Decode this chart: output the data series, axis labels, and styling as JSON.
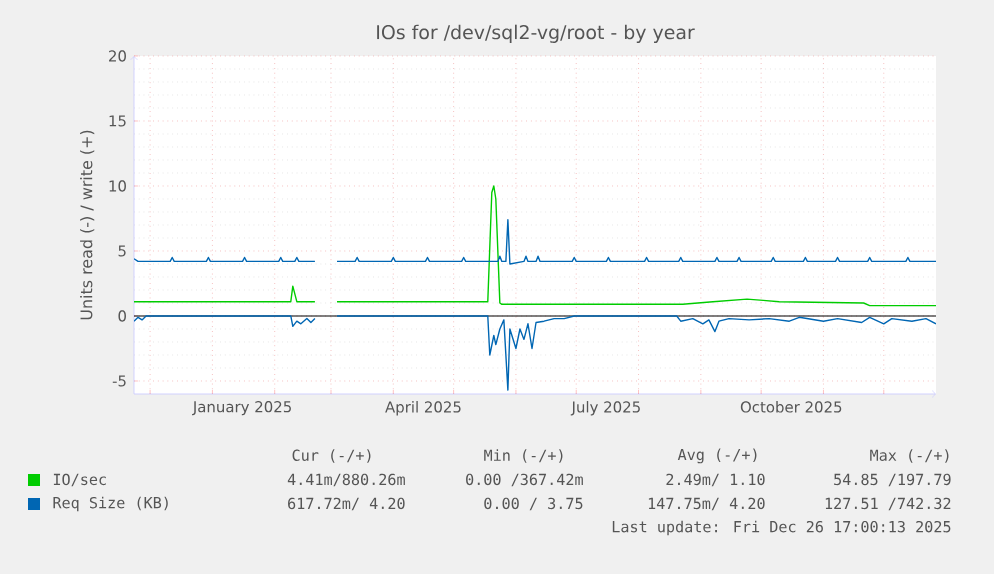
{
  "chart_data": {
    "type": "line",
    "title": "IOs for /dev/sql2-vg/root - by year",
    "ylabel": "Units read (-) / write (+)",
    "xlim": [
      "2024-11-23",
      "2025-12-27"
    ],
    "ylim": [
      -6,
      20
    ],
    "yticks": [
      -5,
      0,
      5,
      10,
      15,
      20
    ],
    "xticks": [
      {
        "value": "2024-12-01",
        "label": null
      },
      {
        "value": "2025-01-01",
        "label": null
      },
      {
        "value": "2025-02-01",
        "label": null
      },
      {
        "value": "2025-03-01",
        "label": null
      },
      {
        "value": "2025-04-01",
        "label": null
      },
      {
        "value": "2025-05-01",
        "label": null
      },
      {
        "value": "2025-06-01",
        "label": null
      },
      {
        "value": "2025-07-01",
        "label": null
      },
      {
        "value": "2025-08-01",
        "label": null
      },
      {
        "value": "2025-09-01",
        "label": null
      },
      {
        "value": "2025-10-01",
        "label": null
      },
      {
        "value": "2025-11-01",
        "label": null
      },
      {
        "value": "2025-12-01",
        "label": null
      },
      {
        "value": "2025-01-16",
        "label": "January 2025"
      },
      {
        "value": "2025-04-16",
        "label": "April 2025"
      },
      {
        "value": "2025-07-16",
        "label": "July 2025"
      },
      {
        "value": "2025-10-16",
        "label": "October 2025"
      }
    ],
    "grid": true,
    "legend": "bottom",
    "ref_lines": [
      {
        "axis": "y",
        "value": 0,
        "color": "#000000"
      }
    ],
    "series": [
      {
        "name": "IO/sec",
        "color": "#00cc00",
        "x": [
          "2024-11-23",
          "2025-02-09",
          "2025-02-10",
          "2025-02-12",
          "2025-02-21",
          "2025-02-26",
          "2025-03-04",
          "2025-05-18",
          "2025-05-20",
          "2025-05-21",
          "2025-05-22",
          "2025-05-24",
          "2025-05-25",
          "2025-08-23",
          "2025-09-07",
          "2025-09-24",
          "2025-10-02",
          "2025-10-10",
          "2025-11-21",
          "2025-11-24",
          "2025-12-27"
        ],
        "values": [
          1.1,
          1.1,
          2.3,
          1.1,
          1.1,
          null,
          1.1,
          1.1,
          9.5,
          10.0,
          9.0,
          1.0,
          0.9,
          0.9,
          1.1,
          1.3,
          1.2,
          1.1,
          1.0,
          0.8,
          0.8
        ]
      },
      {
        "name": "Req Size (KB)",
        "color": "#0066b3",
        "x": [
          "2024-11-23",
          "2024-11-25",
          "2024-12-11",
          "2024-12-12",
          "2024-12-13",
          "2024-12-29",
          "2024-12-30",
          "2024-12-31",
          "2025-01-16",
          "2025-01-17",
          "2025-01-18",
          "2025-02-03",
          "2025-02-04",
          "2025-02-05",
          "2025-02-11",
          "2025-02-12",
          "2025-02-13",
          "2025-02-21",
          "2025-02-26",
          "2025-03-04",
          "2025-03-13",
          "2025-03-14",
          "2025-03-15",
          "2025-03-31",
          "2025-04-01",
          "2025-04-02",
          "2025-04-17",
          "2025-04-18",
          "2025-04-19",
          "2025-05-05",
          "2025-05-06",
          "2025-05-07",
          "2025-05-23",
          "2025-05-24",
          "2025-05-25",
          "2025-05-27",
          "2025-05-28",
          "2025-05-29",
          "2025-06-05",
          "2025-06-06",
          "2025-06-07",
          "2025-06-11",
          "2025-06-12",
          "2025-06-13",
          "2025-06-29",
          "2025-06-30",
          "2025-07-01",
          "2025-07-16",
          "2025-07-17",
          "2025-07-18",
          "2025-08-04",
          "2025-08-05",
          "2025-08-06",
          "2025-08-21",
          "2025-08-22",
          "2025-08-23",
          "2025-09-08",
          "2025-09-09",
          "2025-09-10",
          "2025-09-19",
          "2025-09-20",
          "2025-09-21",
          "2025-10-06",
          "2025-10-07",
          "2025-10-08",
          "2025-10-22",
          "2025-10-23",
          "2025-10-24",
          "2025-11-07",
          "2025-11-08",
          "2025-11-09",
          "2025-11-23",
          "2025-11-24",
          "2025-11-25",
          "2025-12-12",
          "2025-12-13",
          "2025-12-14",
          "2025-12-27"
        ],
        "values": [
          4.4,
          4.2,
          4.2,
          4.5,
          4.2,
          4.2,
          4.5,
          4.2,
          4.2,
          4.5,
          4.2,
          4.2,
          4.5,
          4.2,
          4.2,
          4.5,
          4.2,
          4.2,
          null,
          4.2,
          4.2,
          4.5,
          4.2,
          4.2,
          4.5,
          4.2,
          4.2,
          4.5,
          4.2,
          4.2,
          4.5,
          4.2,
          4.2,
          4.6,
          4.2,
          4.2,
          7.4,
          4.0,
          4.2,
          4.6,
          4.2,
          4.2,
          4.6,
          4.2,
          4.2,
          4.5,
          4.2,
          4.2,
          4.5,
          4.2,
          4.2,
          4.5,
          4.2,
          4.2,
          4.5,
          4.2,
          4.2,
          4.5,
          4.2,
          4.2,
          4.5,
          4.2,
          4.2,
          4.5,
          4.2,
          4.2,
          4.5,
          4.2,
          4.2,
          4.5,
          4.2,
          4.2,
          4.5,
          4.2,
          4.2,
          4.5,
          4.2,
          4.2
        ]
      },
      {
        "color": "#0066b3",
        "x": [
          "2024-11-23",
          "2024-11-25",
          "2024-11-27",
          "2024-11-29",
          "2025-02-09",
          "2025-02-10",
          "2025-02-12",
          "2025-02-14",
          "2025-02-17",
          "2025-02-19",
          "2025-02-21",
          "2025-02-26",
          "2025-03-04",
          "2025-05-18",
          "2025-05-19",
          "2025-05-21",
          "2025-05-22",
          "2025-05-24",
          "2025-05-26",
          "2025-05-28",
          "2025-05-29",
          "2025-06-01",
          "2025-06-03",
          "2025-06-05",
          "2025-06-07",
          "2025-06-09",
          "2025-06-11",
          "2025-06-15",
          "2025-06-20",
          "2025-06-25",
          "2025-06-30",
          "2025-08-20",
          "2025-08-22",
          "2025-08-28",
          "2025-09-02",
          "2025-09-05",
          "2025-09-08",
          "2025-09-10",
          "2025-09-15",
          "2025-09-25",
          "2025-10-05",
          "2025-10-15",
          "2025-10-20",
          "2025-11-01",
          "2025-11-08",
          "2025-11-20",
          "2025-11-24",
          "2025-12-01",
          "2025-12-05",
          "2025-12-15",
          "2025-12-22",
          "2025-12-27"
        ],
        "values": [
          -0.4,
          -0.1,
          -0.3,
          0,
          0,
          -0.8,
          -0.4,
          -0.6,
          -0.2,
          -0.5,
          -0.2,
          null,
          0,
          0,
          -3.0,
          -1.5,
          -2.2,
          -1.0,
          -0.3,
          -5.7,
          -1.0,
          -2.5,
          -1.0,
          -1.8,
          -0.6,
          -2.5,
          -0.5,
          -0.4,
          -0.2,
          -0.2,
          0,
          0,
          -0.4,
          -0.2,
          -0.6,
          -0.3,
          -1.2,
          -0.4,
          -0.2,
          -0.3,
          -0.2,
          -0.4,
          -0.1,
          -0.4,
          -0.2,
          -0.5,
          -0.1,
          -0.6,
          -0.2,
          -0.4,
          -0.2,
          -0.6
        ]
      }
    ],
    "annotations": [
      "Cur (-/+)",
      "Min (-/+)",
      "Avg (-/+)",
      "Max (-/+)",
      "4.41m/880.26m",
      "0.00 /367.42m",
      "2.49m/ 1.10",
      "54.85 /197.79",
      "617.72m/ 4.20",
      "0.00 / 3.75",
      "147.75m/ 4.20",
      "127.51 /742.32",
      "Last update: Fri Dec 26 17:00:13 2025"
    ]
  }
}
